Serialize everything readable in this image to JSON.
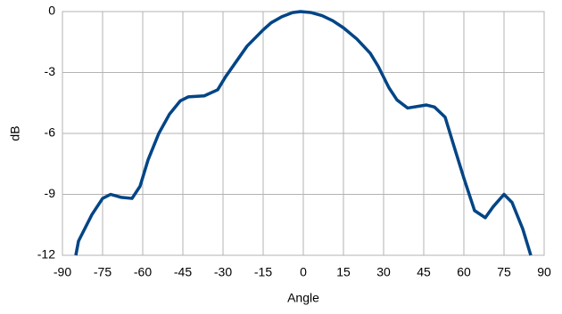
{
  "chart_data": {
    "type": "line",
    "x_label": "Angle",
    "y_label": "dB",
    "x": [
      -85,
      -84,
      -79,
      -75,
      -72,
      -68,
      -64,
      -61,
      -58,
      -54,
      -50,
      -46,
      -43,
      -37,
      -32,
      -29,
      -25,
      -21,
      -15,
      -12,
      -8,
      -4,
      -1,
      3,
      7,
      11,
      15,
      20,
      25,
      28,
      32,
      35,
      39,
      46,
      49,
      53,
      56,
      60,
      64,
      68,
      71,
      75,
      78,
      82,
      85
    ],
    "series": [
      {
        "name": "dB",
        "color": "#004586",
        "values": [
          -12,
          -11.3,
          -10,
          -9.2,
          -9.0,
          -9.15,
          -9.2,
          -8.6,
          -7.3,
          -6.0,
          -5.05,
          -4.4,
          -4.2,
          -4.15,
          -3.85,
          -3.2,
          -2.45,
          -1.7,
          -0.9,
          -0.55,
          -0.25,
          -0.05,
          0,
          -0.05,
          -0.2,
          -0.45,
          -0.8,
          -1.35,
          -2.05,
          -2.7,
          -3.75,
          -4.35,
          -4.75,
          -4.6,
          -4.7,
          -5.2,
          -6.5,
          -8.2,
          -9.8,
          -10.15,
          -9.6,
          -9.0,
          -9.4,
          -10.7,
          -12
        ]
      }
    ],
    "xlim": [
      -90,
      90
    ],
    "xticks": [
      -90,
      -75,
      -60,
      -45,
      -30,
      -15,
      0,
      15,
      30,
      45,
      60,
      75,
      90
    ],
    "ylim": [
      -12,
      0
    ],
    "yticks": [
      0,
      -3,
      -6,
      -9,
      -12
    ],
    "grid": true
  }
}
